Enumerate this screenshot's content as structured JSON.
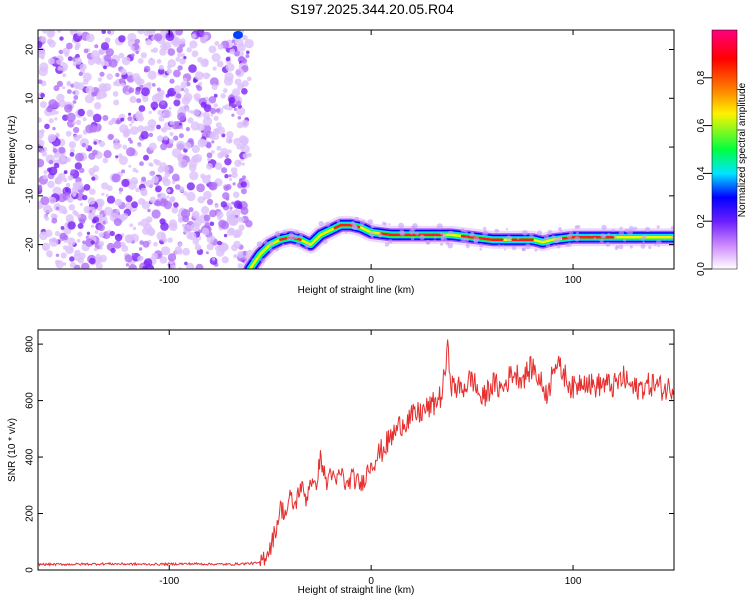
{
  "title": "S197.2025.344.20.05.R04",
  "colors": {
    "trace": "#e53030",
    "speckle": "#8a3cf0",
    "colorbar": [
      "#ffffff",
      "#cc88ff",
      "#6a1fff",
      "#0000ff",
      "#00e5ff",
      "#00ff40",
      "#fff200",
      "#ff8000",
      "#ff0000",
      "#ff0080"
    ]
  },
  "chart_data": [
    {
      "type": "heatmap",
      "xlabel": "Height of straight line (km)",
      "ylabel": "Frequency (Hz)",
      "xlim": [
        -165,
        150
      ],
      "ylim": [
        -25,
        24
      ],
      "xticks": [
        "-100",
        "0",
        "100"
      ],
      "xtick_values": [
        -100,
        0,
        100
      ],
      "yticks": [
        "20",
        "10",
        "0",
        "-10",
        "-20"
      ],
      "ytick_values": [
        20,
        10,
        0,
        -10,
        -20
      ],
      "noise_region_x": [
        -165,
        -60
      ],
      "ridge": {
        "x": [
          -60,
          -55,
          -50,
          -45,
          -40,
          -35,
          -30,
          -25,
          -20,
          -15,
          -10,
          -5,
          0,
          10,
          20,
          40,
          60,
          80,
          85,
          90,
          100,
          120,
          150
        ],
        "y": [
          -25,
          -22,
          -20,
          -19,
          -18.5,
          -19,
          -20,
          -18,
          -17,
          -16,
          -16,
          -16.5,
          -17.5,
          -18,
          -18,
          -18,
          -19,
          -19,
          -19.5,
          -19,
          -18.5,
          -18.5,
          -18.5
        ]
      },
      "colorbar": {
        "label": "Normalized spectral amplitude",
        "ticks": [
          "0.0",
          "0.2",
          "0.4",
          "0.6",
          "0.8"
        ],
        "tick_values": [
          0,
          0.2,
          0.4,
          0.6,
          0.8
        ],
        "range": [
          0,
          1
        ]
      }
    },
    {
      "type": "line",
      "xlabel": "Height of straight line (km)",
      "ylabel": "SNR (10 * v/v)",
      "xlim": [
        -165,
        150
      ],
      "ylim": [
        0,
        850
      ],
      "xticks": [
        "-100",
        "0",
        "100"
      ],
      "xtick_values": [
        -100,
        0,
        100
      ],
      "yticks": [
        "0",
        "200",
        "400",
        "600",
        "800"
      ],
      "ytick_values": [
        0,
        200,
        400,
        600,
        800
      ],
      "series": [
        {
          "x": [
            -165,
            -150,
            -130,
            -110,
            -90,
            -70,
            -55,
            -50,
            -47,
            -45,
            -42,
            -40,
            -38,
            -35,
            -32,
            -30,
            -28,
            -25,
            -22,
            -20,
            -18,
            -15,
            -12,
            -10,
            -5,
            0,
            5,
            10,
            15,
            20,
            25,
            30,
            35,
            38,
            40,
            45,
            50,
            55,
            60,
            65,
            70,
            75,
            80,
            85,
            88,
            90,
            95,
            100,
            105,
            110,
            115,
            120,
            125,
            130,
            135,
            140,
            145,
            150
          ],
          "y": [
            20,
            20,
            22,
            20,
            22,
            20,
            25,
            80,
            150,
            220,
            200,
            260,
            220,
            300,
            250,
            330,
            280,
            400,
            300,
            360,
            300,
            350,
            290,
            330,
            300,
            380,
            420,
            470,
            520,
            540,
            560,
            580,
            620,
            780,
            650,
            640,
            680,
            600,
            660,
            640,
            700,
            680,
            720,
            650,
            620,
            740,
            700,
            640,
            680,
            650,
            660,
            650,
            680,
            640,
            650,
            660,
            640,
            650
          ]
        }
      ]
    }
  ]
}
